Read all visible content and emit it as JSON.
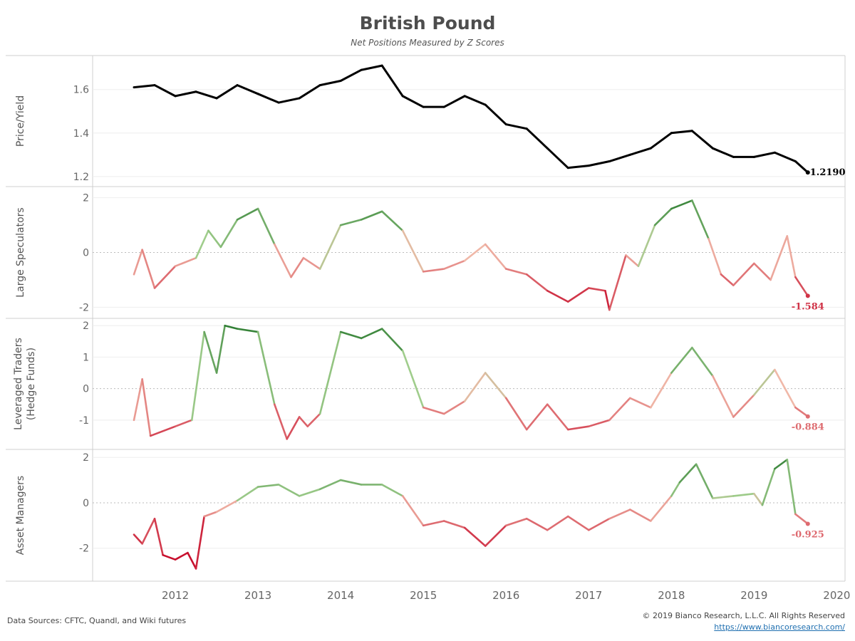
{
  "title": "British Pound",
  "subtitle": "Net Positions Measured by Z Scores",
  "footer": {
    "sources": "Data Sources: CFTC, Quandl, and Wiki futures",
    "copyright": "© 2019 Bianco Research, L.L.C. All Rights Reserved",
    "url": "https://www.biancoresearch.com/"
  },
  "colors": {
    "price": "#000000",
    "high": "#2e7d32",
    "mid": "#f0b8a8",
    "low": "#c8102e"
  },
  "chart_data": [
    {
      "type": "line",
      "ylabel": "Price/Yield",
      "ylim": [
        1.18,
        1.73
      ],
      "yticks": [
        1.2,
        1.4,
        1.6
      ],
      "last_label": "1.2190",
      "x": [
        2011.5,
        2011.75,
        2012,
        2012.25,
        2012.5,
        2012.75,
        2013,
        2013.25,
        2013.5,
        2013.75,
        2014,
        2014.25,
        2014.5,
        2014.75,
        2015,
        2015.25,
        2015.5,
        2015.75,
        2016,
        2016.25,
        2016.5,
        2016.75,
        2017,
        2017.25,
        2017.5,
        2017.75,
        2018,
        2018.25,
        2018.5,
        2018.75,
        2019,
        2019.25,
        2019.5,
        2019.65
      ],
      "values": [
        1.61,
        1.62,
        1.57,
        1.59,
        1.56,
        1.62,
        1.58,
        1.54,
        1.56,
        1.62,
        1.64,
        1.69,
        1.71,
        1.57,
        1.52,
        1.52,
        1.57,
        1.53,
        1.44,
        1.42,
        1.33,
        1.24,
        1.25,
        1.27,
        1.3,
        1.33,
        1.4,
        1.41,
        1.33,
        1.29,
        1.29,
        1.31,
        1.27,
        1.219
      ]
    },
    {
      "type": "line",
      "ylabel": "Large Speculators",
      "ylim": [
        -2.2,
        2.2
      ],
      "yticks": [
        -2,
        0,
        2
      ],
      "last_label": "-1.584",
      "x": [
        2011.5,
        2011.6,
        2011.75,
        2012,
        2012.25,
        2012.4,
        2012.55,
        2012.75,
        2013,
        2013.2,
        2013.4,
        2013.55,
        2013.75,
        2014,
        2014.25,
        2014.5,
        2014.75,
        2015,
        2015.25,
        2015.5,
        2015.75,
        2016,
        2016.25,
        2016.5,
        2016.75,
        2017,
        2017.2,
        2017.25,
        2017.45,
        2017.6,
        2017.8,
        2018,
        2018.25,
        2018.45,
        2018.6,
        2018.75,
        2019,
        2019.2,
        2019.4,
        2019.5,
        2019.65
      ],
      "values": [
        -0.8,
        0.1,
        -1.3,
        -0.5,
        -0.2,
        0.8,
        0.2,
        1.2,
        1.6,
        0.3,
        -0.9,
        -0.2,
        -0.6,
        1.0,
        1.2,
        1.5,
        0.8,
        -0.7,
        -0.6,
        -0.3,
        0.3,
        -0.6,
        -0.8,
        -1.4,
        -1.8,
        -1.3,
        -1.4,
        -2.1,
        -0.1,
        -0.5,
        1.0,
        1.6,
        1.9,
        0.5,
        -0.8,
        -1.2,
        -0.4,
        -1.0,
        0.6,
        -0.9,
        -1.584
      ]
    },
    {
      "type": "line",
      "ylabel": "Leveraged Traders (Hedge Funds)",
      "ylim": [
        -1.75,
        2.05
      ],
      "yticks": [
        -1,
        0,
        1,
        2
      ],
      "last_label": "-0.884",
      "x": [
        2011.5,
        2011.6,
        2011.7,
        2012,
        2012.2,
        2012.35,
        2012.5,
        2012.6,
        2012.75,
        2013,
        2013.2,
        2013.35,
        2013.5,
        2013.6,
        2013.75,
        2014,
        2014.25,
        2014.5,
        2014.75,
        2015,
        2015.25,
        2015.5,
        2015.75,
        2016,
        2016.25,
        2016.5,
        2016.75,
        2017,
        2017.25,
        2017.5,
        2017.75,
        2018,
        2018.25,
        2018.5,
        2018.75,
        2019,
        2019.25,
        2019.5,
        2019.65
      ],
      "values": [
        -1.0,
        0.3,
        -1.5,
        -1.2,
        -1.0,
        1.8,
        0.5,
        2.0,
        1.9,
        1.8,
        -0.5,
        -1.6,
        -0.9,
        -1.2,
        -0.8,
        1.8,
        1.6,
        1.9,
        1.2,
        -0.6,
        -0.8,
        -0.4,
        0.5,
        -0.3,
        -1.3,
        -0.5,
        -1.3,
        -1.2,
        -1.0,
        -0.3,
        -0.6,
        0.5,
        1.3,
        0.4,
        -0.9,
        -0.2,
        0.6,
        -0.6,
        -0.884
      ]
    },
    {
      "type": "line",
      "ylabel": "Asset Managers",
      "ylim": [
        -3.2,
        2.1
      ],
      "yticks": [
        -2,
        0,
        2
      ],
      "last_label": "-0.925",
      "x": [
        2011.5,
        2011.6,
        2011.75,
        2011.85,
        2012,
        2012.15,
        2012.25,
        2012.35,
        2012.5,
        2012.75,
        2013,
        2013.25,
        2013.5,
        2013.75,
        2014,
        2014.25,
        2014.5,
        2014.75,
        2015,
        2015.25,
        2015.5,
        2015.75,
        2016,
        2016.25,
        2016.5,
        2016.75,
        2017,
        2017.25,
        2017.5,
        2017.75,
        2018,
        2018.1,
        2018.3,
        2018.5,
        2018.75,
        2019,
        2019.1,
        2019.25,
        2019.4,
        2019.5,
        2019.65
      ],
      "values": [
        -1.4,
        -1.8,
        -0.7,
        -2.3,
        -2.5,
        -2.2,
        -2.9,
        -0.6,
        -0.4,
        0.1,
        0.7,
        0.8,
        0.3,
        0.6,
        1.0,
        0.8,
        0.8,
        0.3,
        -1.0,
        -0.8,
        -1.1,
        -1.9,
        -1.0,
        -0.7,
        -1.2,
        -0.6,
        -1.2,
        -0.7,
        -0.3,
        -0.8,
        0.3,
        0.9,
        1.7,
        0.2,
        0.3,
        0.4,
        -0.1,
        1.5,
        1.9,
        -0.5,
        -0.925
      ]
    }
  ],
  "x_axis": {
    "ticks": [
      "2012",
      "2013",
      "2014",
      "2015",
      "2016",
      "2017",
      "2018",
      "2019",
      "2020"
    ],
    "range": [
      2011.0,
      2020.1
    ]
  }
}
